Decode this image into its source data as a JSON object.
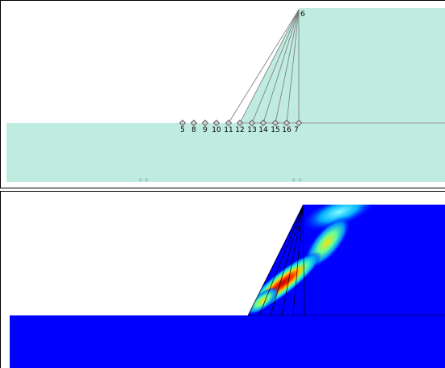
{
  "top_panel": {
    "apex_node": "6",
    "base_nodes": [
      "5",
      "8",
      "9",
      "10",
      "11",
      "12",
      "13",
      "14",
      "15",
      "16",
      "7"
    ]
  }
}
